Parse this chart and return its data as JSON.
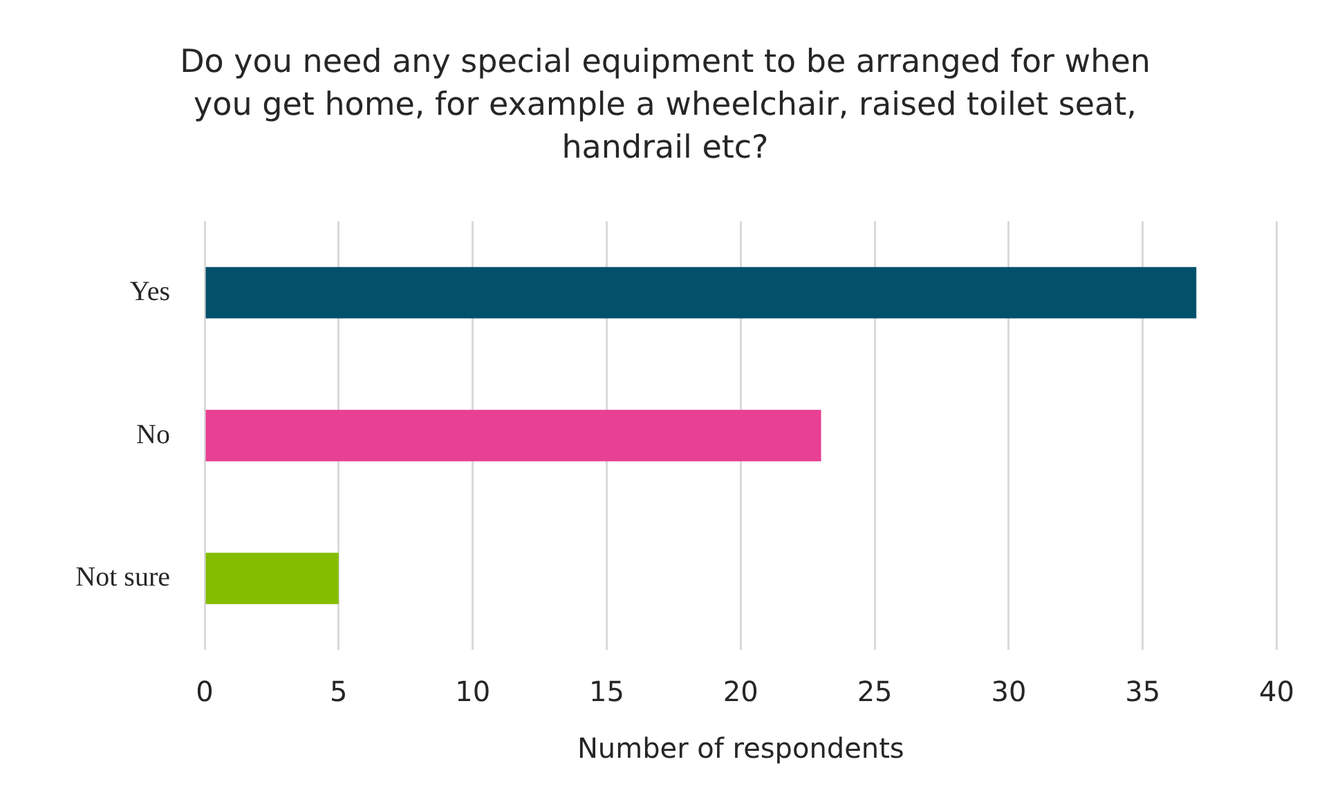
{
  "chart_data": {
    "type": "bar",
    "title": "Do you need any special equipment to be arranged for when you get home, for example a wheelchair, raised toilet seat, handrail etc?",
    "orientation": "horizontal",
    "categories": [
      "Yes",
      "No",
      "Not sure"
    ],
    "values": [
      37,
      23,
      5
    ],
    "colors": [
      "#03506b",
      "#e84093",
      "#84bd00"
    ],
    "xlabel": "Number of respondents",
    "xlim": [
      0,
      40
    ],
    "xticks": [
      0,
      5,
      10,
      15,
      20,
      25,
      30,
      35,
      40
    ],
    "grid": "x",
    "legend": false
  }
}
